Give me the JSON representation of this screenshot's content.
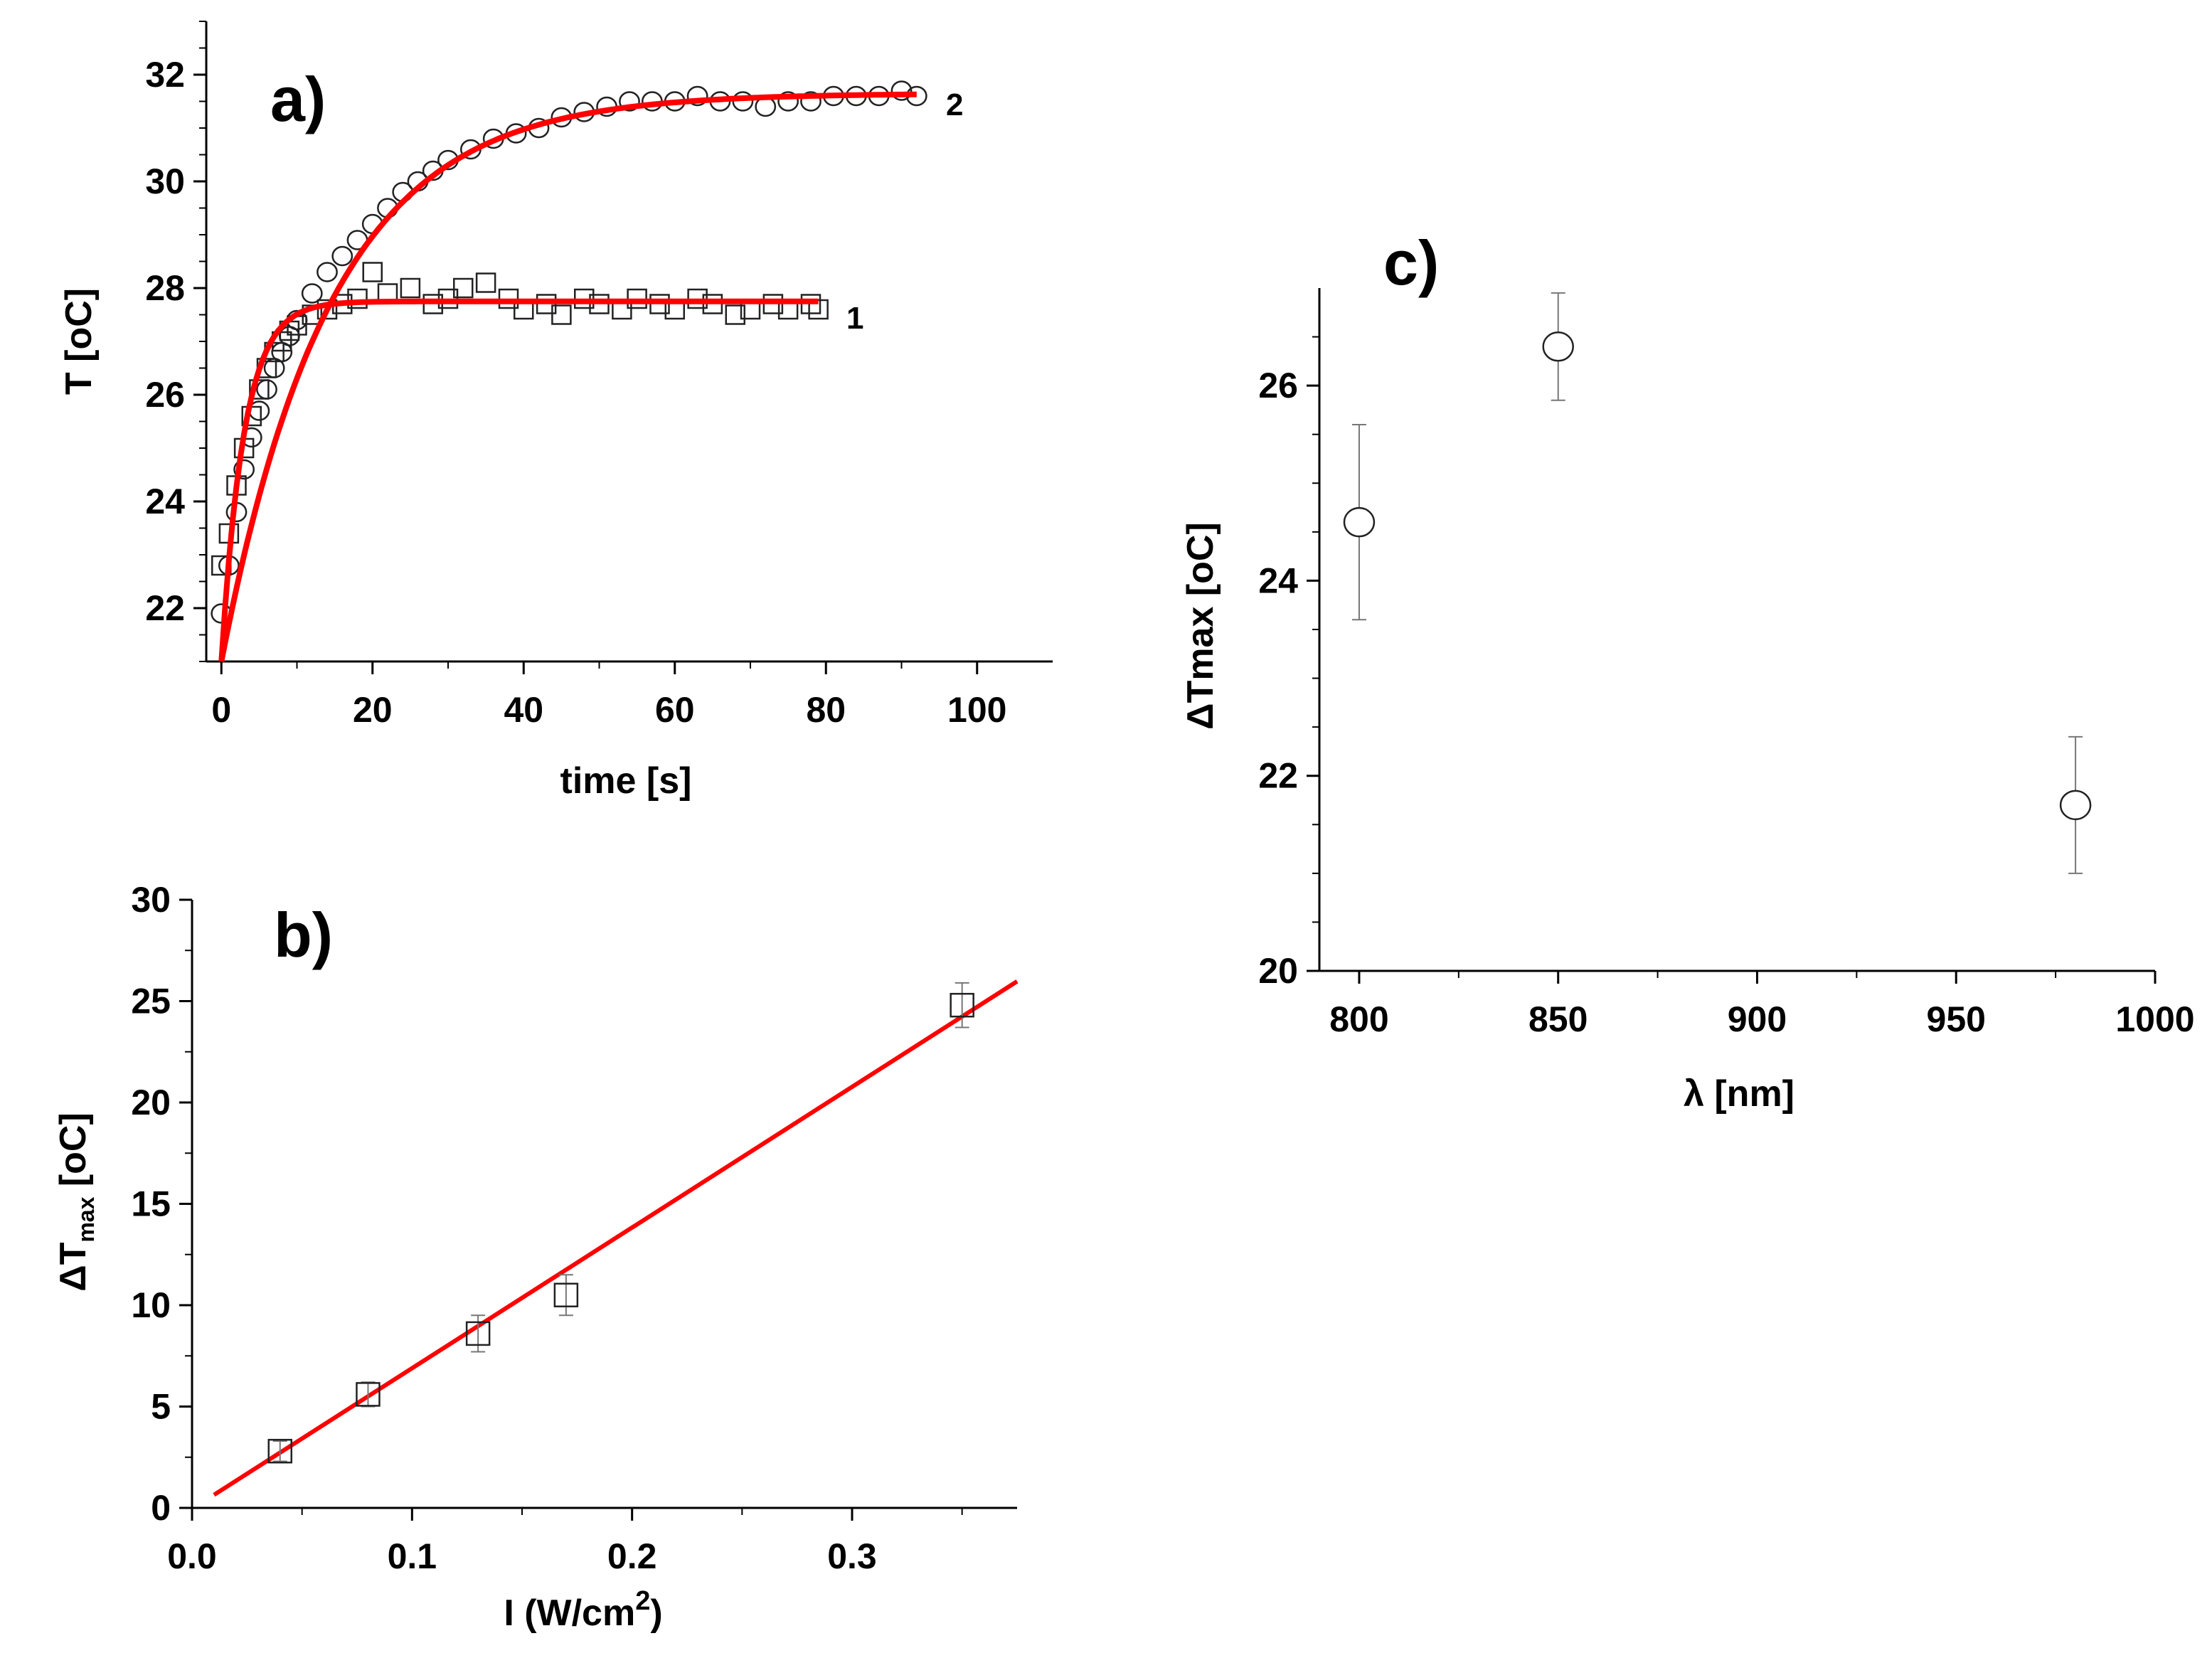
{
  "chart_data": [
    {
      "id": "a",
      "type": "scatter",
      "panel_label": "a)",
      "xlabel": "time [s]",
      "ylabel": "T [oC]",
      "xlim": [
        -2,
        110
      ],
      "ylim": [
        21,
        33
      ],
      "xticks": [
        0,
        20,
        40,
        60,
        80,
        100
      ],
      "yticks": [
        22,
        24,
        26,
        28,
        30,
        32
      ],
      "tick_labels_x": [
        "0",
        "20",
        "40",
        "60",
        "80",
        "100"
      ],
      "tick_labels_y": [
        "22",
        "24",
        "26",
        "28",
        "30",
        "32"
      ],
      "series": [
        {
          "name": "1",
          "marker": "square",
          "color": "#000000",
          "x": [
            0,
            1,
            2,
            3,
            4,
            5,
            6,
            7,
            8,
            9,
            10,
            12,
            14,
            16,
            18,
            20,
            22,
            25,
            28,
            30,
            32,
            35,
            38,
            40,
            43,
            45,
            48,
            50,
            53,
            55,
            58,
            60,
            63,
            65,
            68,
            70,
            73,
            75,
            78,
            79
          ],
          "y": [
            22.8,
            23.4,
            24.3,
            25.0,
            25.6,
            26.1,
            26.5,
            26.8,
            27.0,
            27.2,
            27.3,
            27.5,
            27.6,
            27.7,
            27.8,
            28.3,
            27.9,
            28.0,
            27.7,
            27.8,
            28.0,
            28.1,
            27.8,
            27.6,
            27.7,
            27.5,
            27.8,
            27.7,
            27.6,
            27.8,
            27.7,
            27.6,
            27.8,
            27.7,
            27.5,
            27.6,
            27.7,
            27.6,
            27.7,
            27.6
          ]
        },
        {
          "name": "2",
          "marker": "circle",
          "color": "#000000",
          "x": [
            0,
            1,
            2,
            3,
            4,
            5,
            6,
            7,
            8,
            9,
            10,
            12,
            14,
            16,
            18,
            20,
            22,
            24,
            26,
            28,
            30,
            33,
            36,
            39,
            42,
            45,
            48,
            51,
            54,
            57,
            60,
            63,
            66,
            69,
            72,
            75,
            78,
            81,
            84,
            87,
            90,
            92
          ],
          "y": [
            21.9,
            22.8,
            23.8,
            24.6,
            25.2,
            25.7,
            26.1,
            26.5,
            26.8,
            27.1,
            27.4,
            27.9,
            28.3,
            28.6,
            28.9,
            29.2,
            29.5,
            29.8,
            30.0,
            30.2,
            30.4,
            30.6,
            30.8,
            30.9,
            31.0,
            31.2,
            31.3,
            31.4,
            31.5,
            31.5,
            31.5,
            31.6,
            31.5,
            31.5,
            31.4,
            31.5,
            31.5,
            31.6,
            31.6,
            31.6,
            31.7,
            31.6
          ]
        }
      ],
      "fits": [
        {
          "name": "fit 1",
          "color": "#ff0000",
          "base": 21.0,
          "amplitude": 6.75,
          "tau": 3.0,
          "x_range": [
            0,
            79
          ]
        },
        {
          "name": "fit 2",
          "color": "#ff0000",
          "base": 21.0,
          "amplitude": 10.65,
          "tau": 14.5,
          "x_range": [
            0,
            92
          ]
        }
      ],
      "curve_labels": [
        "1",
        "2"
      ]
    },
    {
      "id": "b",
      "type": "scatter",
      "panel_label": "b)",
      "xlabel_main": "I (W/cm",
      "xlabel_sup": "2",
      "xlabel_tail": ")",
      "ylabel_main": "ΔT",
      "ylabel_sub": "max",
      "ylabel_tail": " [oC]",
      "xlim": [
        0,
        0.375
      ],
      "ylim": [
        0,
        30
      ],
      "xticks": [
        0.0,
        0.1,
        0.2,
        0.3
      ],
      "yticks": [
        0,
        5,
        10,
        15,
        20,
        25,
        30
      ],
      "tick_labels_x": [
        "0.0",
        "0.1",
        "0.2",
        "0.3"
      ],
      "tick_labels_y": [
        "0",
        "5",
        "10",
        "15",
        "20",
        "25",
        "30"
      ],
      "series": [
        {
          "name": "ΔTmax vs I",
          "marker": "square",
          "color": "#000000",
          "x": [
            0.04,
            0.08,
            0.13,
            0.17,
            0.35
          ],
          "y": [
            2.8,
            5.6,
            8.6,
            10.5,
            24.8
          ],
          "err": [
            0.5,
            0.6,
            0.9,
            1.0,
            1.1
          ]
        }
      ],
      "fit": {
        "type": "linear",
        "color": "#ff0000",
        "slope": 69.4,
        "intercept": -0.05,
        "x_range": [
          0.01,
          0.375
        ]
      }
    },
    {
      "id": "c",
      "type": "scatter",
      "panel_label": "c)",
      "xlabel": "λ [nm]",
      "ylabel": "ΔTmax [oC]",
      "xlim": [
        790,
        1000
      ],
      "ylim": [
        20,
        27
      ],
      "xticks": [
        800,
        850,
        900,
        950,
        1000
      ],
      "yticks": [
        20,
        22,
        24,
        26
      ],
      "tick_labels_x": [
        "800",
        "850",
        "900",
        "950",
        "1000"
      ],
      "tick_labels_y": [
        "20",
        "22",
        "24",
        "26"
      ],
      "series": [
        {
          "name": "ΔTmax vs λ",
          "marker": "circle",
          "color": "#000000",
          "x": [
            800,
            850,
            980
          ],
          "y": [
            24.6,
            26.4,
            21.7
          ],
          "err": [
            1.0,
            0.55,
            0.7
          ]
        }
      ]
    }
  ]
}
